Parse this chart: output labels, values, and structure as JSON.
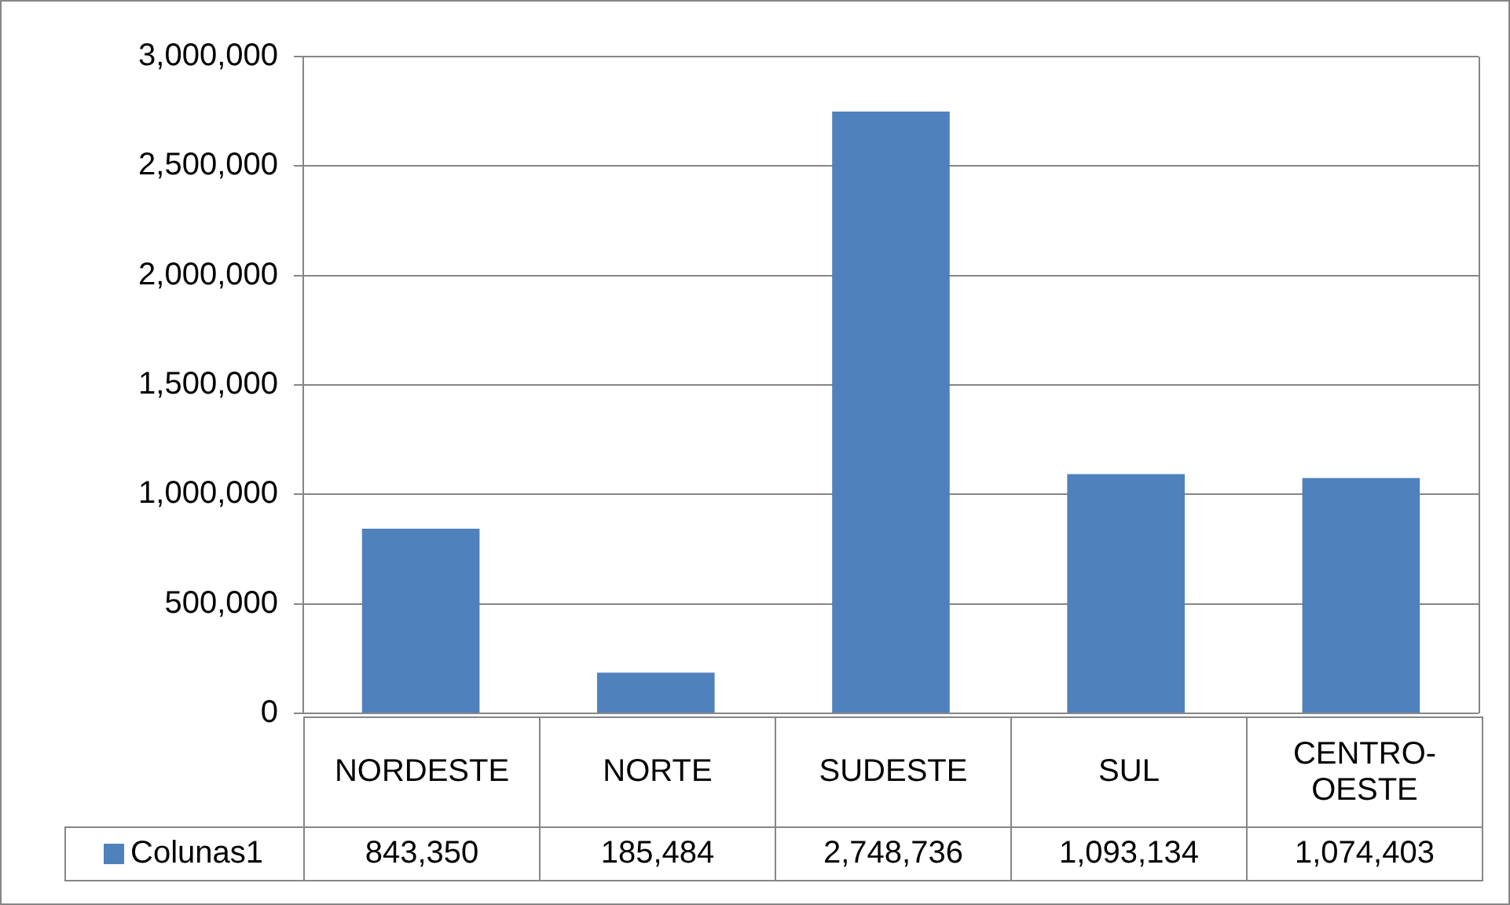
{
  "chart_data": {
    "type": "bar",
    "categories": [
      "NORDESTE",
      "NORTE",
      "SUDESTE",
      "SUL",
      "CENTRO-OESTE"
    ],
    "series": [
      {
        "name": "Colunas1",
        "color": "#4f81bd",
        "values": [
          843350,
          185484,
          2748736,
          1093134,
          1074403
        ],
        "value_labels": [
          "843,350",
          "185,484",
          "2,748,736",
          "1,093,134",
          "1,074,403"
        ]
      }
    ],
    "ylim": [
      0,
      3000000
    ],
    "yticks": [
      0,
      {
        "value": 500000,
        "label": "500,000"
      },
      {
        "value": 1000000,
        "label": "1,000,000"
      },
      {
        "value": 1500000,
        "label": "1,500,000"
      },
      {
        "value": 2000000,
        "label": "2,000,000"
      },
      {
        "value": 2500000,
        "label": "2,500,000"
      },
      {
        "value": 3000000,
        "label": "3,000,000"
      }
    ],
    "grid": "y"
  }
}
